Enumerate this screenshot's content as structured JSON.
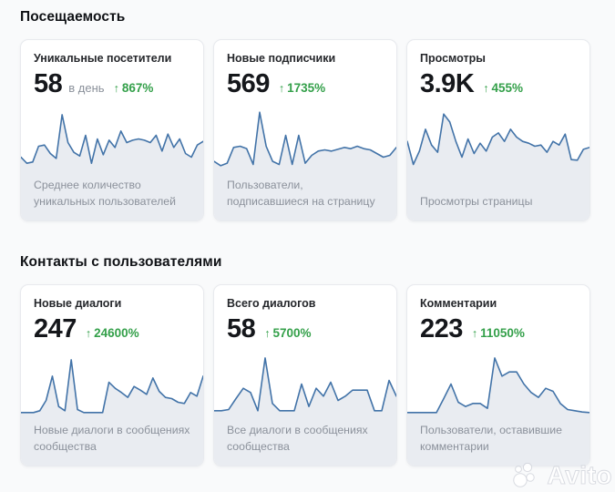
{
  "colors": {
    "page_bg": "#f9fafb",
    "card_bg": "#ffffff",
    "border": "#e8eaee",
    "chart_line": "#4273a8",
    "chart_fill": "#e9ecf1",
    "positive": "#34a04a",
    "number": "#15171b",
    "muted": "#8b919b"
  },
  "icons": {
    "up_arrow": "↑"
  },
  "watermark": {
    "brand": "Avito"
  },
  "sections": [
    {
      "title": "Посещаемость",
      "cards": [
        {
          "title": "Уникальные посетители",
          "value": "58",
          "unit": "в день",
          "change": "867%",
          "caption": "Среднее количество уникальных пользователей"
        },
        {
          "title": "Новые подписчики",
          "value": "569",
          "unit": "",
          "change": "1735%",
          "caption": "Пользователи, подписавшиеся на страницу"
        },
        {
          "title": "Просмотры",
          "value": "3.9K",
          "unit": "",
          "change": "455%",
          "caption": "Просмотры страницы"
        }
      ]
    },
    {
      "title": "Контакты с пользователями",
      "cards": [
        {
          "title": "Новые диалоги",
          "value": "247",
          "unit": "",
          "change": "24600%",
          "caption": "Новые диалоги в сообщениях сообщества"
        },
        {
          "title": "Всего диалогов",
          "value": "58",
          "unit": "",
          "change": "5700%",
          "caption": "Все диалоги в сообщениях сообщества"
        },
        {
          "title": "Комментарии",
          "value": "223",
          "unit": "",
          "change": "11050%",
          "caption": "Пользователи, оставившие комментарии"
        }
      ]
    }
  ],
  "chart_data": [
    {
      "type": "line",
      "name": "Уникальные посетители — динамика по дням",
      "axes": "hidden",
      "legend": "none",
      "ylim": [
        0,
        100
      ],
      "values": [
        22,
        12,
        14,
        40,
        42,
        28,
        20,
        92,
        46,
        30,
        24,
        58,
        12,
        52,
        26,
        50,
        38,
        65,
        46,
        50,
        52,
        50,
        46,
        58,
        32,
        60,
        38,
        52,
        28,
        22,
        42,
        48
      ]
    },
    {
      "type": "line",
      "name": "Новые подписчики — динамика по дням",
      "axes": "hidden",
      "legend": "none",
      "ylim": [
        0,
        100
      ],
      "values": [
        15,
        8,
        12,
        38,
        40,
        36,
        10,
        96,
        40,
        15,
        10,
        58,
        10,
        58,
        12,
        25,
        32,
        34,
        32,
        35,
        38,
        36,
        40,
        36,
        34,
        28,
        22,
        25,
        38
      ]
    },
    {
      "type": "line",
      "name": "Просмотры — динамика по дням",
      "axes": "hidden",
      "legend": "none",
      "ylim": [
        0,
        100
      ],
      "values": [
        48,
        10,
        32,
        68,
        42,
        30,
        93,
        80,
        48,
        22,
        52,
        28,
        45,
        32,
        55,
        62,
        48,
        68,
        55,
        48,
        45,
        40,
        42,
        30,
        48,
        42,
        60,
        18,
        17,
        35,
        38
      ]
    },
    {
      "type": "line",
      "name": "Новые диалоги — динамика по дням",
      "axes": "hidden",
      "legend": "none",
      "ylim": [
        0,
        100
      ],
      "values": [
        5,
        5,
        5,
        8,
        25,
        65,
        15,
        8,
        92,
        10,
        5,
        5,
        5,
        5,
        55,
        45,
        38,
        30,
        48,
        42,
        35,
        62,
        40,
        30,
        28,
        22,
        20,
        38,
        32,
        65
      ]
    },
    {
      "type": "line",
      "name": "Всего диалогов — динамика по дням",
      "axes": "hidden",
      "legend": "none",
      "ylim": [
        0,
        100
      ],
      "values": [
        8,
        8,
        10,
        28,
        45,
        38,
        8,
        95,
        20,
        8,
        8,
        8,
        52,
        15,
        45,
        32,
        55,
        25,
        32,
        42,
        42,
        42,
        8,
        8,
        58,
        32
      ]
    },
    {
      "type": "line",
      "name": "Комментарии — динамика по дням",
      "axes": "hidden",
      "legend": "none",
      "ylim": [
        0,
        100
      ],
      "values": [
        5,
        5,
        5,
        5,
        5,
        28,
        52,
        22,
        15,
        20,
        20,
        12,
        95,
        65,
        72,
        72,
        52,
        38,
        30,
        45,
        40,
        20,
        10,
        8,
        6,
        5
      ]
    }
  ]
}
